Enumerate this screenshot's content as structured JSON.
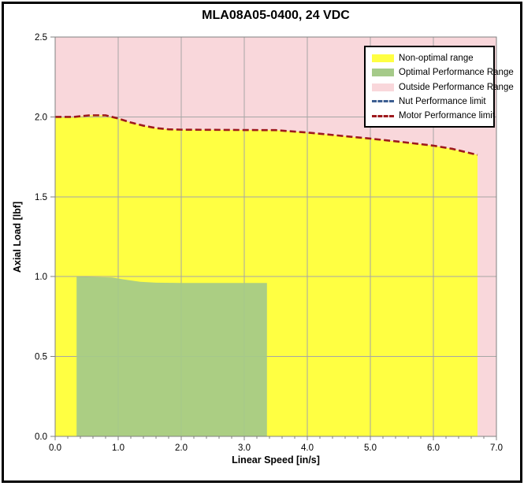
{
  "chart_data": {
    "type": "area",
    "title": "MLA08A05-0400, 24 VDC",
    "xlabel": "Linear Speed [in/s]",
    "ylabel": "Axial Load [lbf]",
    "xlim": [
      0.0,
      7.0
    ],
    "ylim": [
      0.0,
      2.5
    ],
    "x_tick_labels": [
      "0.0",
      "1.0",
      "2.0",
      "3.0",
      "4.0",
      "5.0",
      "6.0",
      "7.0"
    ],
    "y_tick_labels": [
      "0.0",
      "0.5",
      "1.0",
      "1.5",
      "2.0",
      "2.5"
    ],
    "x_major_tick_step": 1.0,
    "x_minor_tick_step": 0.2,
    "y_major_tick_step": 0.5,
    "grid": true,
    "colors": {
      "outside_range": "#F9D7DB",
      "non_optimal": "#FFFF42",
      "optimal": "#A5CA89",
      "motor_limit": "#9E1A1D",
      "nut_limit": "#3C5E91",
      "gridline": "#A6A6A6",
      "plot_border": "#808080",
      "tick": "#808080",
      "text": "#000000"
    },
    "regions": [
      {
        "name": "Outside Performance Range",
        "color": "#F9D7DB",
        "coverage": "entire plot background"
      },
      {
        "name": "Non-optimal range",
        "color": "#FFFF42",
        "x_range": [
          0.0,
          6.7
        ],
        "upper_boundary": "motor_limit_curve"
      },
      {
        "name": "Optimal Performance Range",
        "color": "#A5CA89",
        "x_range": [
          0.34,
          3.36
        ],
        "top_boundary": [
          [
            0.34,
            1.0
          ],
          [
            0.9,
            0.995
          ],
          [
            1.1,
            0.982
          ],
          [
            1.35,
            0.968
          ],
          [
            1.6,
            0.962
          ],
          [
            2.0,
            0.96
          ],
          [
            3.36,
            0.96
          ]
        ]
      }
    ],
    "series": [
      {
        "name": "Nut Performance limit",
        "style": "dashed",
        "color": "#3C5E91",
        "visible_on_plot": false,
        "points": []
      },
      {
        "name": "Motor Performance limit",
        "style": "dashed",
        "color": "#9E1A1D",
        "visible_on_plot": true,
        "points": [
          [
            0,
            2.0
          ],
          [
            0.3,
            2.0
          ],
          [
            0.55,
            2.01
          ],
          [
            0.8,
            2.01
          ],
          [
            1.0,
            1.99
          ],
          [
            1.2,
            1.965
          ],
          [
            1.4,
            1.945
          ],
          [
            1.6,
            1.93
          ],
          [
            1.8,
            1.922
          ],
          [
            2.0,
            1.92
          ],
          [
            3.0,
            1.918
          ],
          [
            3.5,
            1.917
          ],
          [
            4.0,
            1.902
          ],
          [
            4.5,
            1.883
          ],
          [
            5.0,
            1.864
          ],
          [
            5.5,
            1.843
          ],
          [
            6.0,
            1.82
          ],
          [
            6.3,
            1.8
          ],
          [
            6.7,
            1.762
          ]
        ]
      }
    ]
  },
  "legend": {
    "position": "top-right",
    "items": [
      {
        "label": "Non-optimal range",
        "swatch": "fill",
        "color": "#FFFF42"
      },
      {
        "label": "Optimal Performance Range",
        "swatch": "fill",
        "color": "#A5CA89"
      },
      {
        "label": "Outside Performance Range",
        "swatch": "fill",
        "color": "#F9D7DB"
      },
      {
        "label": "Nut Performance limit",
        "swatch": "dashed-line",
        "color": "#3C5E91"
      },
      {
        "label": "Motor Performance limit",
        "swatch": "dashed-line",
        "color": "#9E1A1D"
      }
    ]
  }
}
